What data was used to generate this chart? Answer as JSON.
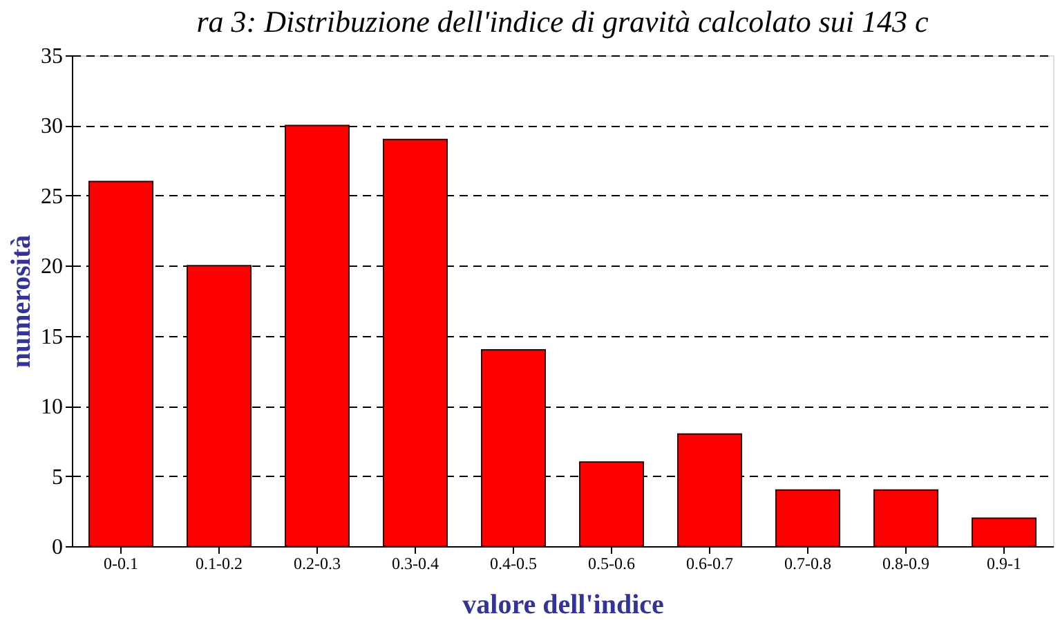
{
  "chart_data": {
    "type": "bar",
    "title": "ra 3: Distribuzione dell'indice di gravità calcolato sui 143 c",
    "xlabel": "valore dell'indice",
    "ylabel": "numerosità",
    "categories": [
      "0-0.1",
      "0.1-0.2",
      "0.2-0.3",
      "0.3-0.4",
      "0.4-0.5",
      "0.5-0.6",
      "0.6-0.7",
      "0.7-0.8",
      "0.8-0.9",
      "0.9-1"
    ],
    "values": [
      26,
      20,
      30,
      29,
      14,
      6,
      8,
      4,
      4,
      2
    ],
    "color": "#ff0000",
    "ylim": [
      0,
      35
    ],
    "yticks": [
      0,
      5,
      10,
      15,
      20,
      25,
      30,
      35
    ],
    "grid": "y"
  }
}
